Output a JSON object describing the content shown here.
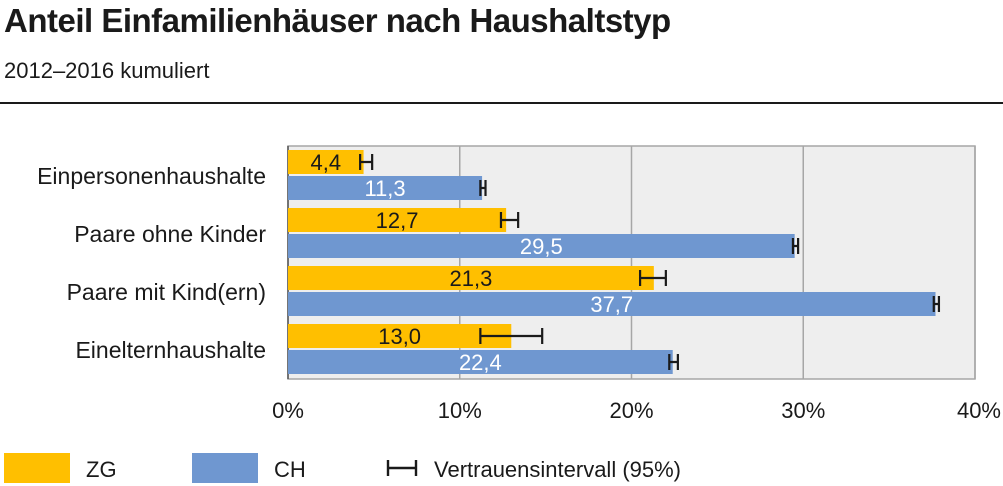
{
  "header": {
    "title": "Anteil Einfamilienhäuser nach Haushaltstyp",
    "subtitle": "2012–2016 kumuliert"
  },
  "chart_data": {
    "type": "bar",
    "orientation": "horizontal",
    "categories": [
      "Einpersonenhaushalte",
      "Paare ohne Kinder",
      "Paare mit Kind(ern)",
      "Einelternhaushalte"
    ],
    "series": [
      {
        "name": "ZG",
        "color": "#ffbf00",
        "values": [
          4.4,
          12.7,
          21.3,
          13.0
        ],
        "value_labels": [
          "4,4",
          "12,7",
          "21,3",
          "13,0"
        ],
        "ci_low": [
          4.2,
          12.4,
          20.5,
          11.2
        ],
        "ci_high": [
          4.9,
          13.4,
          22.0,
          14.8
        ]
      },
      {
        "name": "CH",
        "color": "#6f97d0",
        "values": [
          11.3,
          29.5,
          37.7,
          22.4
        ],
        "value_labels": [
          "11,3",
          "29,5",
          "37,7",
          "22,4"
        ],
        "ci_low": [
          11.2,
          29.4,
          37.6,
          22.2
        ],
        "ci_high": [
          11.5,
          29.7,
          37.9,
          22.7
        ]
      }
    ],
    "xlim": [
      0,
      40
    ],
    "x_ticks": [
      0,
      10,
      20,
      30,
      40
    ],
    "x_tick_labels": [
      "0%",
      "10%",
      "20%",
      "30%",
      "40%"
    ],
    "grid": true,
    "plot_background": "#eeeeee",
    "legend_position": "bottom",
    "ci_legend_label": "Vertrauensintervall (95%)"
  }
}
